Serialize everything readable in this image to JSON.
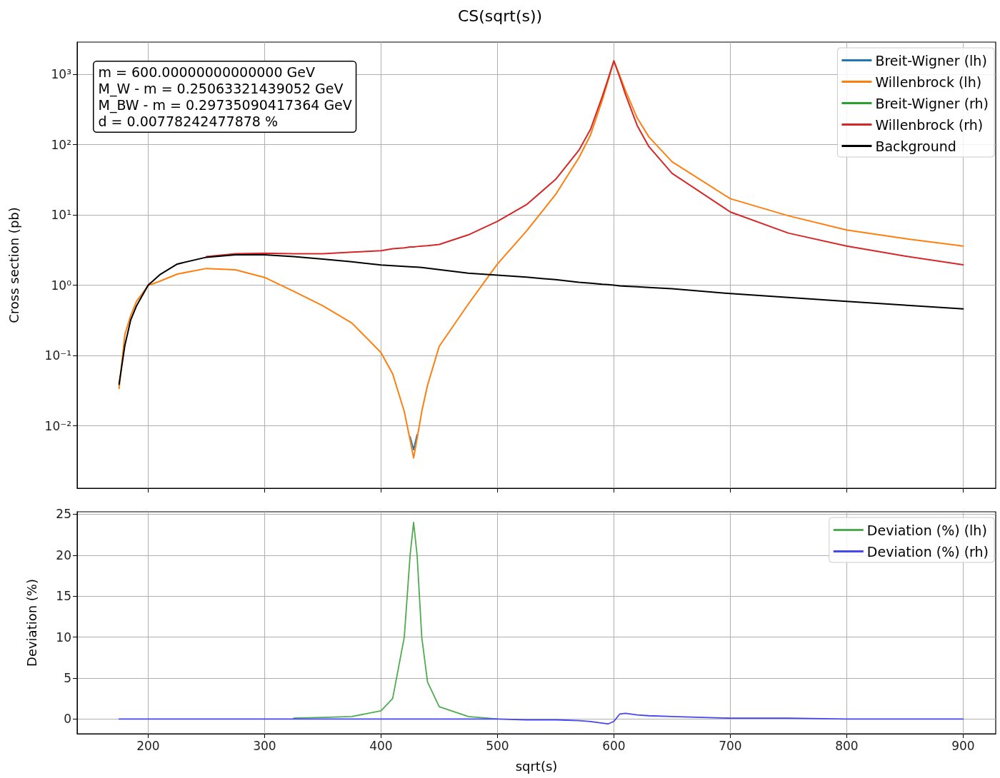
{
  "chart_data": [
    {
      "type": "line",
      "title": "CS(sqrt(s))",
      "ylabel": "Cross section (pb)",
      "log": "y",
      "grid": true,
      "legend": "top right",
      "marker": "none",
      "line_style": "solid",
      "tick_labels": "y",
      "annotations": [
        "m = 600.00000000000000 GeV",
        "M_W - m = 0.25063321439052 GeV",
        "M_BW - m = 0.29735090417364 GeV",
        "d = 0.00778242477878 %"
      ],
      "xlim": [
        139,
        928
      ],
      "xticks": [
        200,
        300,
        400,
        500,
        600,
        700,
        800,
        900
      ],
      "ylim": [
        0.0013,
        2860
      ],
      "yticks": [
        {
          "value": 0.01,
          "label": "10⁻²"
        },
        {
          "value": 0.1,
          "label": "10⁻¹"
        },
        {
          "value": 1,
          "label": "10⁰"
        },
        {
          "value": 10,
          "label": "10¹"
        },
        {
          "value": 100,
          "label": "10²"
        },
        {
          "value": 1000,
          "label": "10³"
        }
      ],
      "x": [
        175,
        180,
        185,
        190,
        200,
        210,
        225,
        250,
        275,
        300,
        325,
        350,
        375,
        400,
        410,
        420,
        425,
        428,
        431,
        435,
        440,
        450,
        475,
        500,
        525,
        550,
        570,
        580,
        590,
        595,
        600,
        605,
        610,
        620,
        630,
        650,
        700,
        750,
        800,
        850,
        900
      ],
      "series": [
        {
          "name": "Breit-Wigner (lh)",
          "color": "#1f77b4",
          "values": [
            null,
            null,
            null,
            null,
            null,
            null,
            null,
            null,
            null,
            null,
            null,
            null,
            null,
            null,
            null,
            null,
            0.007,
            0.0046,
            0.0075,
            null,
            null,
            null,
            null,
            null,
            null,
            null,
            null,
            null,
            null,
            null,
            null,
            null,
            null,
            null,
            null,
            null,
            null,
            null,
            null,
            null,
            null
          ]
        },
        {
          "name": "Willenbrock (lh)",
          "color": "#ff7f0e",
          "values": [
            0.034,
            0.2,
            0.37,
            0.59,
            0.99,
            1.14,
            1.44,
            1.73,
            1.66,
            1.29,
            0.82,
            0.51,
            0.29,
            0.11,
            0.055,
            0.016,
            0.0063,
            0.0035,
            0.0066,
            0.016,
            0.038,
            0.135,
            0.54,
            2.0,
            5.9,
            19.5,
            65,
            137,
            425,
            800,
            1550,
            960,
            585,
            240,
            129,
            57,
            17,
            9.7,
            6.1,
            4.6,
            3.6
          ]
        },
        {
          "name": "Breit-Wigner (rh)",
          "color": "#2ca02c",
          "values": [
            null,
            null,
            null,
            null,
            null,
            null,
            null,
            null,
            null,
            null,
            null,
            null,
            null,
            null,
            null,
            null,
            null,
            null,
            null,
            null,
            null,
            null,
            null,
            null,
            null,
            null,
            null,
            null,
            null,
            null,
            null,
            null,
            null,
            null,
            null,
            null,
            null,
            null,
            null,
            null,
            null
          ]
        },
        {
          "name": "Willenbrock (rh)",
          "color": "#d62728",
          "values": [
            null,
            null,
            null,
            null,
            null,
            null,
            null,
            2.55,
            2.8,
            2.85,
            2.8,
            2.8,
            2.95,
            3.1,
            3.3,
            3.4,
            3.5,
            3.5,
            3.55,
            3.6,
            3.65,
            3.8,
            5.2,
            8.1,
            14,
            32,
            83,
            165,
            480,
            850,
            1550,
            910,
            515,
            187,
            94,
            39,
            11,
            5.5,
            3.6,
            2.6,
            1.95
          ]
        },
        {
          "name": "Background",
          "color": "#000000",
          "values": [
            0.039,
            0.14,
            0.32,
            0.51,
            1.0,
            1.41,
            2.0,
            2.5,
            2.7,
            2.7,
            2.55,
            2.35,
            2.15,
            1.94,
            1.9,
            1.85,
            1.83,
            1.82,
            1.81,
            1.79,
            1.75,
            1.67,
            1.48,
            1.39,
            1.3,
            1.2,
            1.1,
            1.07,
            1.03,
            1.02,
            1.0,
            0.98,
            0.97,
            0.95,
            0.93,
            0.89,
            0.76,
            0.67,
            0.59,
            0.52,
            0.46
          ]
        }
      ]
    },
    {
      "type": "line",
      "xlabel": "sqrt(s)",
      "ylabel": "Deviation (%)",
      "grid": true,
      "legend": "top right",
      "marker": "none",
      "line_style": "solid",
      "xlim": [
        139,
        928
      ],
      "xticks": [
        200,
        300,
        400,
        500,
        600,
        700,
        800,
        900
      ],
      "ylim": [
        -1.8,
        25.3
      ],
      "yticks": [
        0,
        5,
        10,
        15,
        20,
        25
      ],
      "x": [
        175,
        180,
        185,
        190,
        200,
        210,
        225,
        250,
        275,
        300,
        325,
        350,
        375,
        400,
        410,
        420,
        425,
        428,
        431,
        435,
        440,
        450,
        475,
        500,
        525,
        550,
        570,
        580,
        590,
        595,
        600,
        605,
        610,
        620,
        630,
        650,
        700,
        750,
        800,
        850,
        900
      ],
      "series": [
        {
          "name": "Deviation (%) (lh)",
          "color": "#4fab4f",
          "values": [
            null,
            null,
            null,
            null,
            null,
            null,
            null,
            null,
            null,
            null,
            0.1,
            0.2,
            0.3,
            1.0,
            2.5,
            10,
            20,
            24,
            20,
            10,
            4.5,
            1.5,
            0.3,
            0,
            null,
            null,
            null,
            null,
            null,
            null,
            null,
            null,
            null,
            null,
            null,
            null,
            null,
            null,
            null,
            null,
            null
          ]
        },
        {
          "name": "Deviation (%) (rh)",
          "color": "#4646f2",
          "values": [
            0,
            0,
            0,
            0,
            0,
            0,
            0,
            0,
            0,
            0,
            0,
            0,
            0,
            0,
            0,
            0,
            0,
            0,
            0,
            0,
            0,
            0,
            0,
            0,
            -0.1,
            -0.1,
            -0.2,
            -0.3,
            -0.5,
            -0.6,
            -0.3,
            0.6,
            0.7,
            0.5,
            0.4,
            0.3,
            0.1,
            0.1,
            0,
            0,
            0
          ]
        }
      ]
    }
  ]
}
